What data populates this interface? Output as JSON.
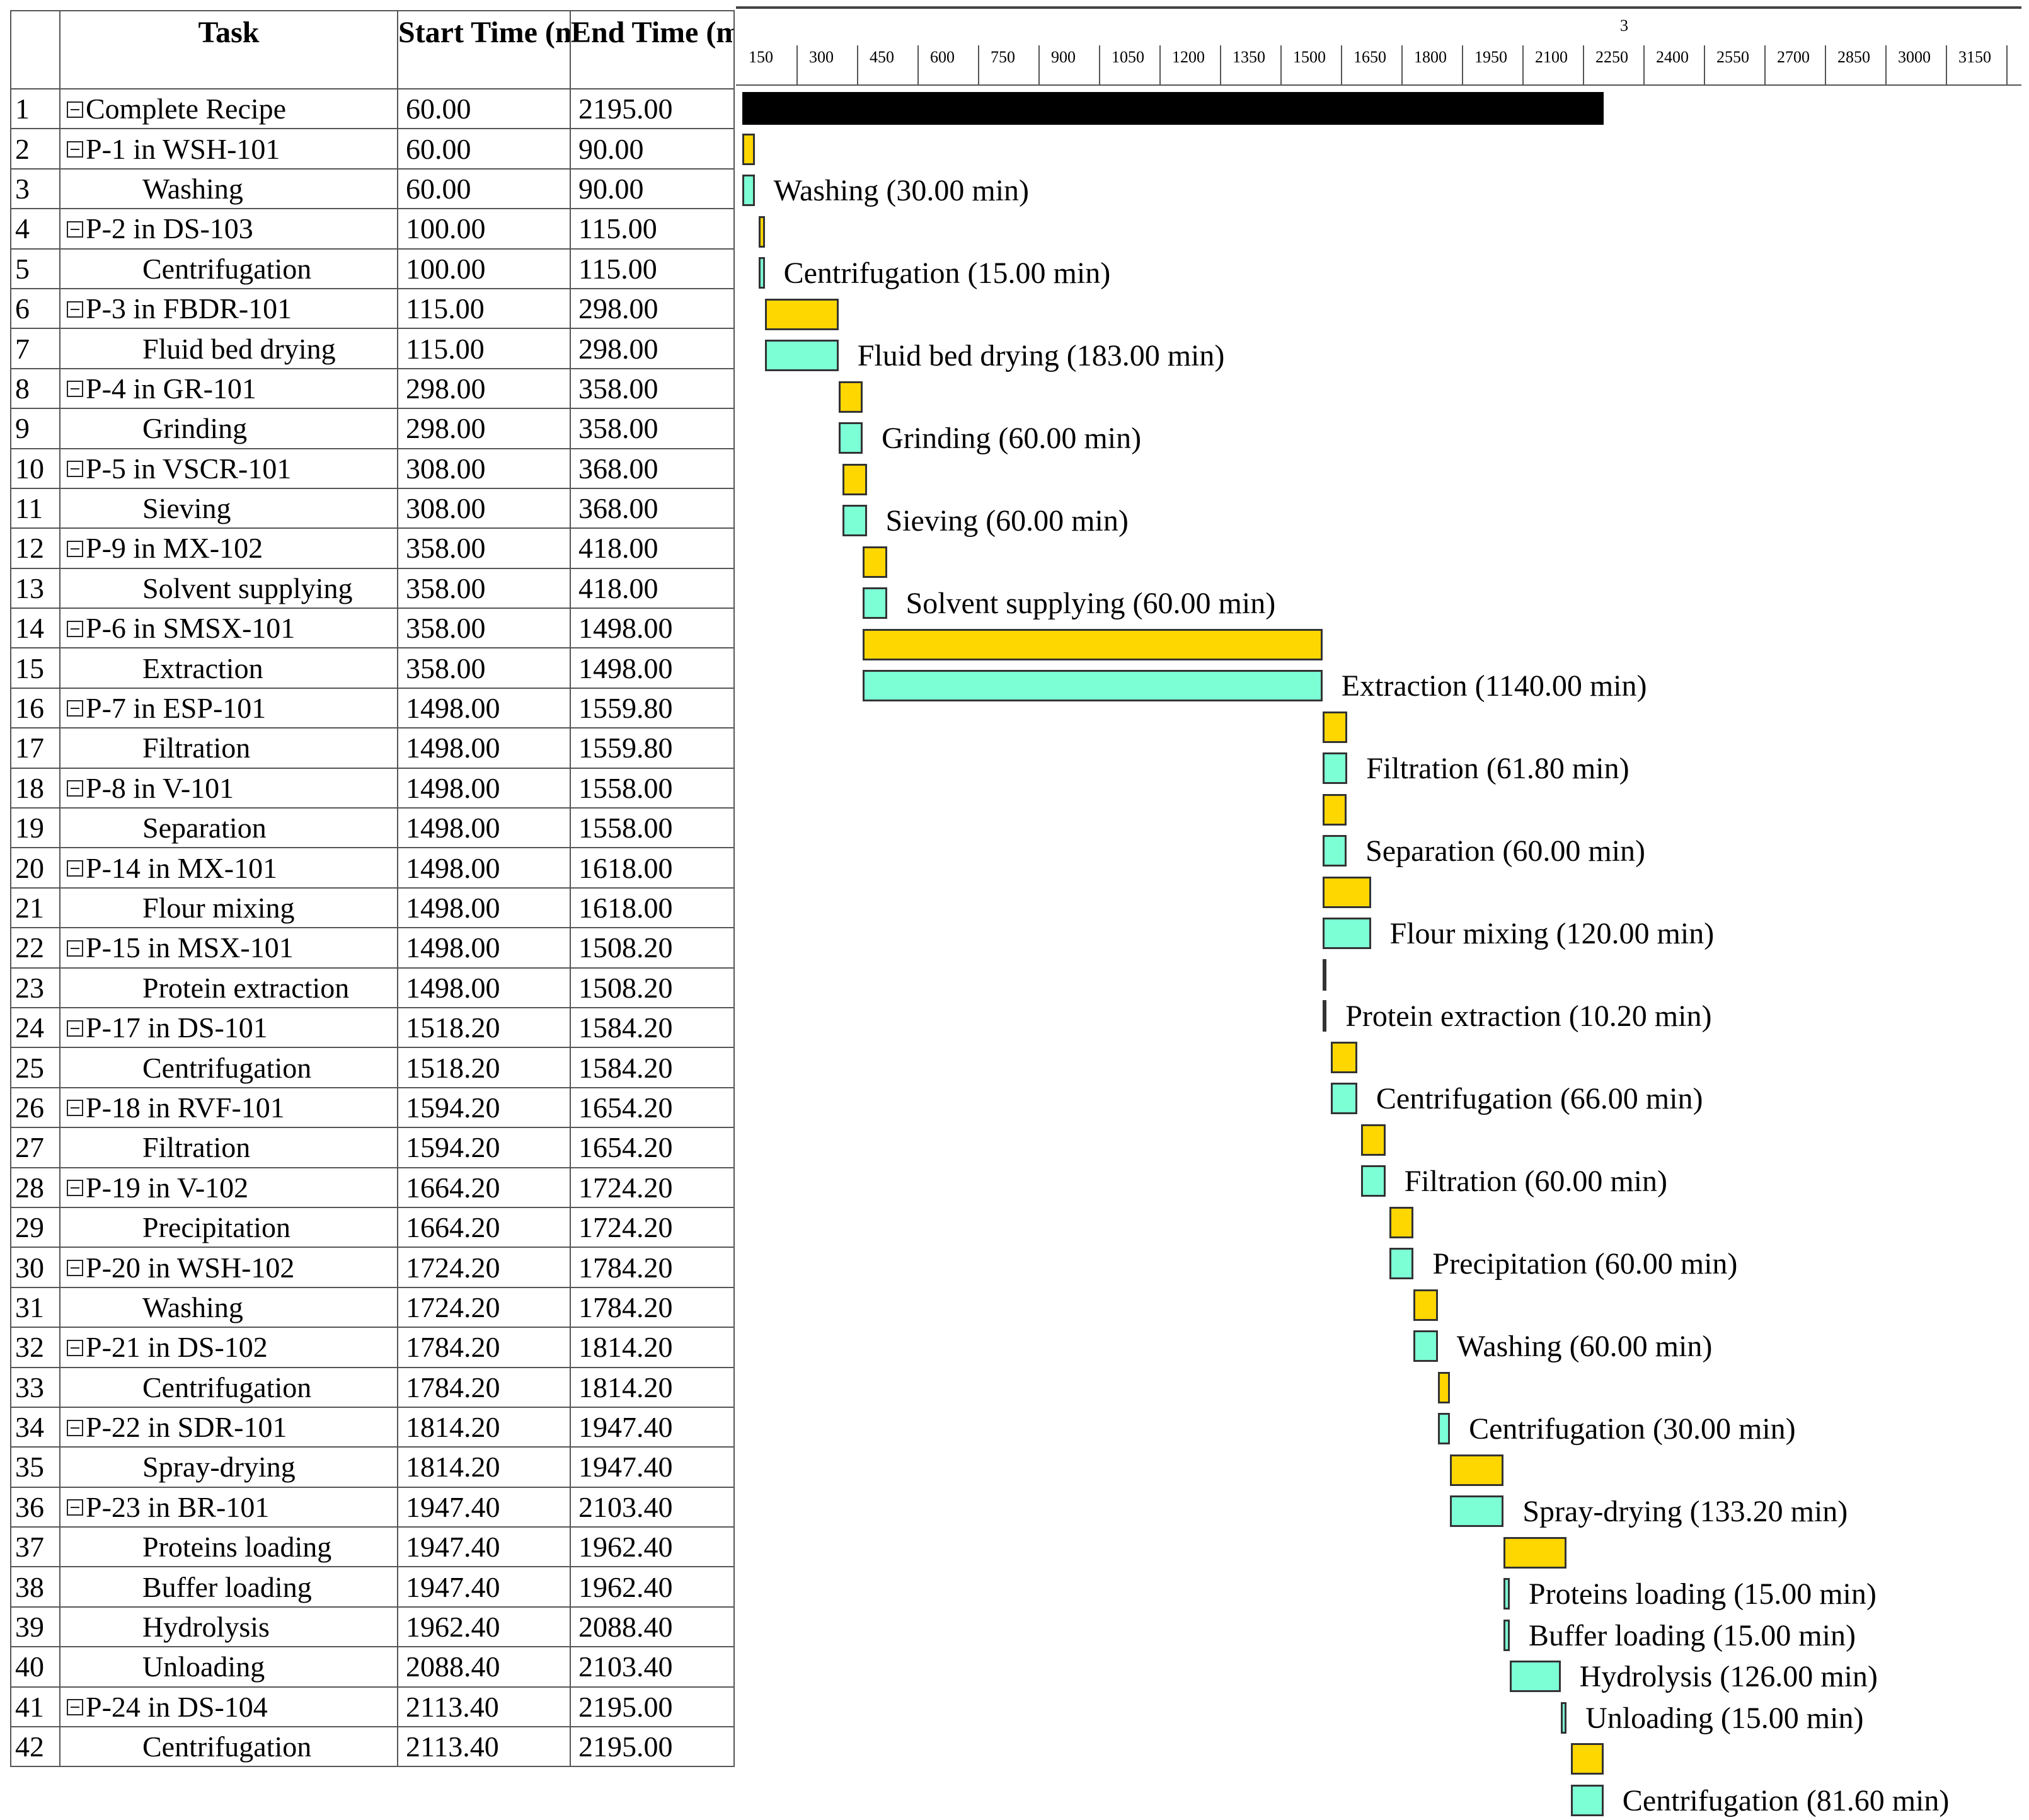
{
  "table": {
    "headers": {
      "task": "Task",
      "start": "Start Time (min)",
      "end": "End Time (min)"
    },
    "rows": [
      {
        "num": "1",
        "task": "Complete Recipe",
        "start": "60.00",
        "end": "2195.00",
        "level": 0,
        "kind": "summary"
      },
      {
        "num": "2",
        "task": "P-1 in WSH-101",
        "start": "60.00",
        "end": "90.00",
        "level": 0,
        "kind": "proc"
      },
      {
        "num": "3",
        "task": "Washing",
        "start": "60.00",
        "end": "90.00",
        "level": 1,
        "kind": "op",
        "bar_label": "Washing (30.00 min)"
      },
      {
        "num": "4",
        "task": "P-2 in DS-103",
        "start": "100.00",
        "end": "115.00",
        "level": 0,
        "kind": "proc"
      },
      {
        "num": "5",
        "task": "Centrifugation",
        "start": "100.00",
        "end": "115.00",
        "level": 1,
        "kind": "op",
        "bar_label": "Centrifugation (15.00 min)"
      },
      {
        "num": "6",
        "task": "P-3 in FBDR-101",
        "start": "115.00",
        "end": "298.00",
        "level": 0,
        "kind": "proc"
      },
      {
        "num": "7",
        "task": "Fluid bed drying",
        "start": "115.00",
        "end": "298.00",
        "level": 1,
        "kind": "op",
        "bar_label": "Fluid bed drying (183.00 min)"
      },
      {
        "num": "8",
        "task": "P-4 in GR-101",
        "start": "298.00",
        "end": "358.00",
        "level": 0,
        "kind": "proc"
      },
      {
        "num": "9",
        "task": "Grinding",
        "start": "298.00",
        "end": "358.00",
        "level": 1,
        "kind": "op",
        "bar_label": "Grinding (60.00 min)"
      },
      {
        "num": "10",
        "task": "P-5 in VSCR-101",
        "start": "308.00",
        "end": "368.00",
        "level": 0,
        "kind": "proc"
      },
      {
        "num": "11",
        "task": "Sieving",
        "start": "308.00",
        "end": "368.00",
        "level": 1,
        "kind": "op",
        "bar_label": "Sieving (60.00 min)"
      },
      {
        "num": "12",
        "task": "P-9 in MX-102",
        "start": "358.00",
        "end": "418.00",
        "level": 0,
        "kind": "proc"
      },
      {
        "num": "13",
        "task": "Solvent supplying",
        "start": "358.00",
        "end": "418.00",
        "level": 1,
        "kind": "op",
        "bar_label": "Solvent supplying (60.00 min)"
      },
      {
        "num": "14",
        "task": "P-6 in SMSX-101",
        "start": "358.00",
        "end": "1498.00",
        "level": 0,
        "kind": "proc"
      },
      {
        "num": "15",
        "task": "Extraction",
        "start": "358.00",
        "end": "1498.00",
        "level": 1,
        "kind": "op",
        "bar_label": "Extraction (1140.00 min)"
      },
      {
        "num": "16",
        "task": "P-7 in ESP-101",
        "start": "1498.00",
        "end": "1559.80",
        "level": 0,
        "kind": "proc"
      },
      {
        "num": "17",
        "task": "Filtration",
        "start": "1498.00",
        "end": "1559.80",
        "level": 1,
        "kind": "op",
        "bar_label": "Filtration (61.80 min)"
      },
      {
        "num": "18",
        "task": "P-8 in V-101",
        "start": "1498.00",
        "end": "1558.00",
        "level": 0,
        "kind": "proc"
      },
      {
        "num": "19",
        "task": "Separation",
        "start": "1498.00",
        "end": "1558.00",
        "level": 1,
        "kind": "op",
        "bar_label": "Separation (60.00 min)"
      },
      {
        "num": "20",
        "task": "P-14 in MX-101",
        "start": "1498.00",
        "end": "1618.00",
        "level": 0,
        "kind": "proc"
      },
      {
        "num": "21",
        "task": "Flour mixing",
        "start": "1498.00",
        "end": "1618.00",
        "level": 1,
        "kind": "op",
        "bar_label": "Flour mixing (120.00 min)"
      },
      {
        "num": "22",
        "task": "P-15 in MSX-101",
        "start": "1498.00",
        "end": "1508.20",
        "level": 0,
        "kind": "proc"
      },
      {
        "num": "23",
        "task": "Protein extraction",
        "start": "1498.00",
        "end": "1508.20",
        "level": 1,
        "kind": "op",
        "bar_label": "Protein extraction (10.20 min)"
      },
      {
        "num": "24",
        "task": "P-17 in DS-101",
        "start": "1518.20",
        "end": "1584.20",
        "level": 0,
        "kind": "proc"
      },
      {
        "num": "25",
        "task": "Centrifugation",
        "start": "1518.20",
        "end": "1584.20",
        "level": 1,
        "kind": "op",
        "bar_label": "Centrifugation (66.00 min)"
      },
      {
        "num": "26",
        "task": "P-18 in RVF-101",
        "start": "1594.20",
        "end": "1654.20",
        "level": 0,
        "kind": "proc"
      },
      {
        "num": "27",
        "task": "Filtration",
        "start": "1594.20",
        "end": "1654.20",
        "level": 1,
        "kind": "op",
        "bar_label": "Filtration (60.00 min)"
      },
      {
        "num": "28",
        "task": "P-19 in V-102",
        "start": "1664.20",
        "end": "1724.20",
        "level": 0,
        "kind": "proc"
      },
      {
        "num": "29",
        "task": "Precipitation",
        "start": "1664.20",
        "end": "1724.20",
        "level": 1,
        "kind": "op",
        "bar_label": "Precipitation (60.00 min)"
      },
      {
        "num": "30",
        "task": "P-20 in WSH-102",
        "start": "1724.20",
        "end": "1784.20",
        "level": 0,
        "kind": "proc"
      },
      {
        "num": "31",
        "task": "Washing",
        "start": "1724.20",
        "end": "1784.20",
        "level": 1,
        "kind": "op",
        "bar_label": "Washing (60.00 min)"
      },
      {
        "num": "32",
        "task": "P-21 in DS-102",
        "start": "1784.20",
        "end": "1814.20",
        "level": 0,
        "kind": "proc"
      },
      {
        "num": "33",
        "task": "Centrifugation",
        "start": "1784.20",
        "end": "1814.20",
        "level": 1,
        "kind": "op",
        "bar_label": "Centrifugation (30.00 min)"
      },
      {
        "num": "34",
        "task": "P-22 in SDR-101",
        "start": "1814.20",
        "end": "1947.40",
        "level": 0,
        "kind": "proc"
      },
      {
        "num": "35",
        "task": "Spray-drying",
        "start": "1814.20",
        "end": "1947.40",
        "level": 1,
        "kind": "op",
        "bar_label": "Spray-drying (133.20 min)"
      },
      {
        "num": "36",
        "task": "P-23 in BR-101",
        "start": "1947.40",
        "end": "2103.40",
        "level": 0,
        "kind": "proc"
      },
      {
        "num": "37",
        "task": "Proteins loading",
        "start": "1947.40",
        "end": "1962.40",
        "level": 1,
        "kind": "op",
        "bar_label": "Proteins loading (15.00 min)"
      },
      {
        "num": "38",
        "task": "Buffer loading",
        "start": "1947.40",
        "end": "1962.40",
        "level": 1,
        "kind": "op",
        "bar_label": "Buffer loading (15.00 min)"
      },
      {
        "num": "39",
        "task": "Hydrolysis",
        "start": "1962.40",
        "end": "2088.40",
        "level": 1,
        "kind": "op",
        "bar_label": "Hydrolysis (126.00 min)"
      },
      {
        "num": "40",
        "task": "Unloading",
        "start": "2088.40",
        "end": "2103.40",
        "level": 1,
        "kind": "op",
        "bar_label": "Unloading (15.00 min)"
      },
      {
        "num": "41",
        "task": "P-24 in DS-104",
        "start": "2113.40",
        "end": "2195.00",
        "level": 0,
        "kind": "proc"
      },
      {
        "num": "42",
        "task": "Centrifugation",
        "start": "2113.40",
        "end": "2195.00",
        "level": 1,
        "kind": "op",
        "bar_label": "Centrifugation (81.60 min)"
      }
    ]
  },
  "timescale": {
    "major_label": "3",
    "ticks": [
      150,
      300,
      450,
      600,
      750,
      900,
      1050,
      1200,
      1350,
      1500,
      1650,
      1800,
      1950,
      2100,
      2250,
      2400,
      2550,
      2700,
      2850,
      3000,
      3150
    ]
  },
  "colors": {
    "summary": "#000000",
    "proc": "#ffd700",
    "op": "#7dffd6",
    "grid": "#555555"
  }
}
